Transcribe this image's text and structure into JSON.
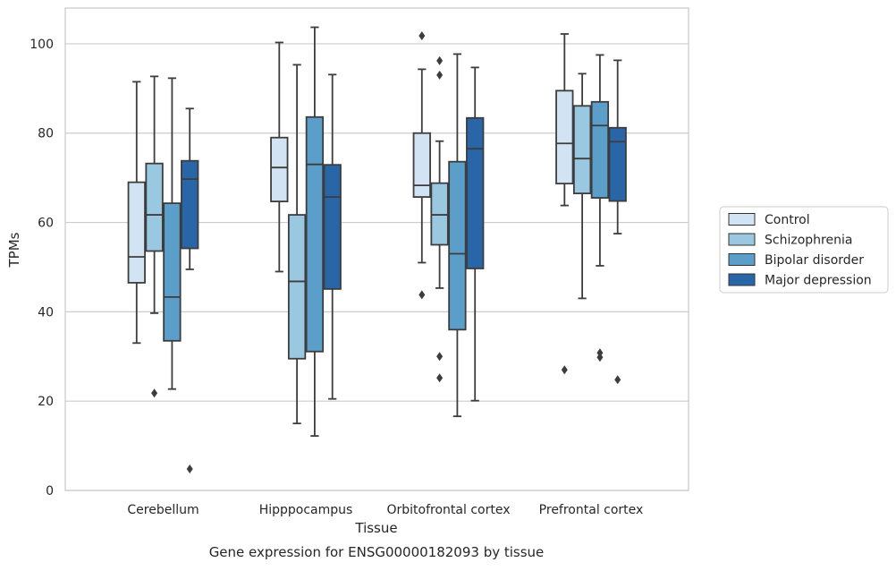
{
  "chart_data": {
    "type": "box",
    "title": "Gene expression for ENSG00000182093 by tissue",
    "xlabel": "Tissue",
    "ylabel": "TPMs",
    "ylim": [
      0,
      108
    ],
    "yticks": [
      0,
      20,
      40,
      60,
      80,
      100
    ],
    "grid": "horizontal",
    "legend_position": "right",
    "categories": [
      "Cerebellum",
      "Hipppocampus",
      "Orbitofrontal cortex",
      "Prefrontal cortex"
    ],
    "series": [
      {
        "name": "Control",
        "color": "#d2e3f3",
        "boxes": [
          {
            "whislo": 33,
            "q1": 46.5,
            "med": 52.3,
            "q3": 69,
            "whishi": 91.5,
            "fliers": []
          },
          {
            "whislo": 49,
            "q1": 64.7,
            "med": 72.3,
            "q3": 79,
            "whishi": 100.3,
            "fliers": []
          },
          {
            "whislo": 51,
            "q1": 65.7,
            "med": 68.3,
            "q3": 80,
            "whishi": 94.3,
            "fliers": [
              101.8,
              43.8
            ]
          },
          {
            "whislo": 63.8,
            "q1": 68.7,
            "med": 77.7,
            "q3": 89.5,
            "whishi": 102.2,
            "fliers": [
              27
            ]
          }
        ]
      },
      {
        "name": "Schizophrenia",
        "color": "#9ac8e0",
        "boxes": [
          {
            "whislo": 39.7,
            "q1": 53.6,
            "med": 61.7,
            "q3": 73.2,
            "whishi": 92.7,
            "fliers": [
              21.8
            ]
          },
          {
            "whislo": 15,
            "q1": 29.5,
            "med": 46.8,
            "q3": 61.7,
            "whishi": 95.3,
            "fliers": []
          },
          {
            "whislo": 45.3,
            "q1": 55,
            "med": 61.7,
            "q3": 68.8,
            "whishi": 78.2,
            "fliers": [
              96.2,
              93,
              30,
              25.2
            ]
          },
          {
            "whislo": 43,
            "q1": 66.5,
            "med": 74.3,
            "q3": 86.1,
            "whishi": 93.3,
            "fliers": []
          }
        ]
      },
      {
        "name": "Bipolar disorder",
        "color": "#5a9ec9",
        "boxes": [
          {
            "whislo": 22.7,
            "q1": 33.5,
            "med": 43.3,
            "q3": 64.3,
            "whishi": 92.3,
            "fliers": []
          },
          {
            "whislo": 12.2,
            "q1": 31.1,
            "med": 73,
            "q3": 83.6,
            "whishi": 103.7,
            "fliers": []
          },
          {
            "whislo": 16.6,
            "q1": 36,
            "med": 53,
            "q3": 73.6,
            "whishi": 97.7,
            "fliers": []
          },
          {
            "whislo": 50.3,
            "q1": 65.5,
            "med": 81.7,
            "q3": 87,
            "whishi": 97.5,
            "fliers": [
              30.8,
              29.8
            ]
          }
        ]
      },
      {
        "name": "Major depression",
        "color": "#2866a8",
        "boxes": [
          {
            "whislo": 49.5,
            "q1": 54.2,
            "med": 69.7,
            "q3": 73.8,
            "whishi": 85.5,
            "fliers": [
              4.8
            ]
          },
          {
            "whislo": 20.5,
            "q1": 45.1,
            "med": 65.7,
            "q3": 72.9,
            "whishi": 93.1,
            "fliers": []
          },
          {
            "whislo": 20.1,
            "q1": 49.7,
            "med": 76.5,
            "q3": 83.4,
            "whishi": 94.7,
            "fliers": []
          },
          {
            "whislo": 57.5,
            "q1": 64.8,
            "med": 78.1,
            "q3": 81.2,
            "whishi": 96.3,
            "fliers": [
              24.8
            ]
          }
        ]
      }
    ]
  }
}
